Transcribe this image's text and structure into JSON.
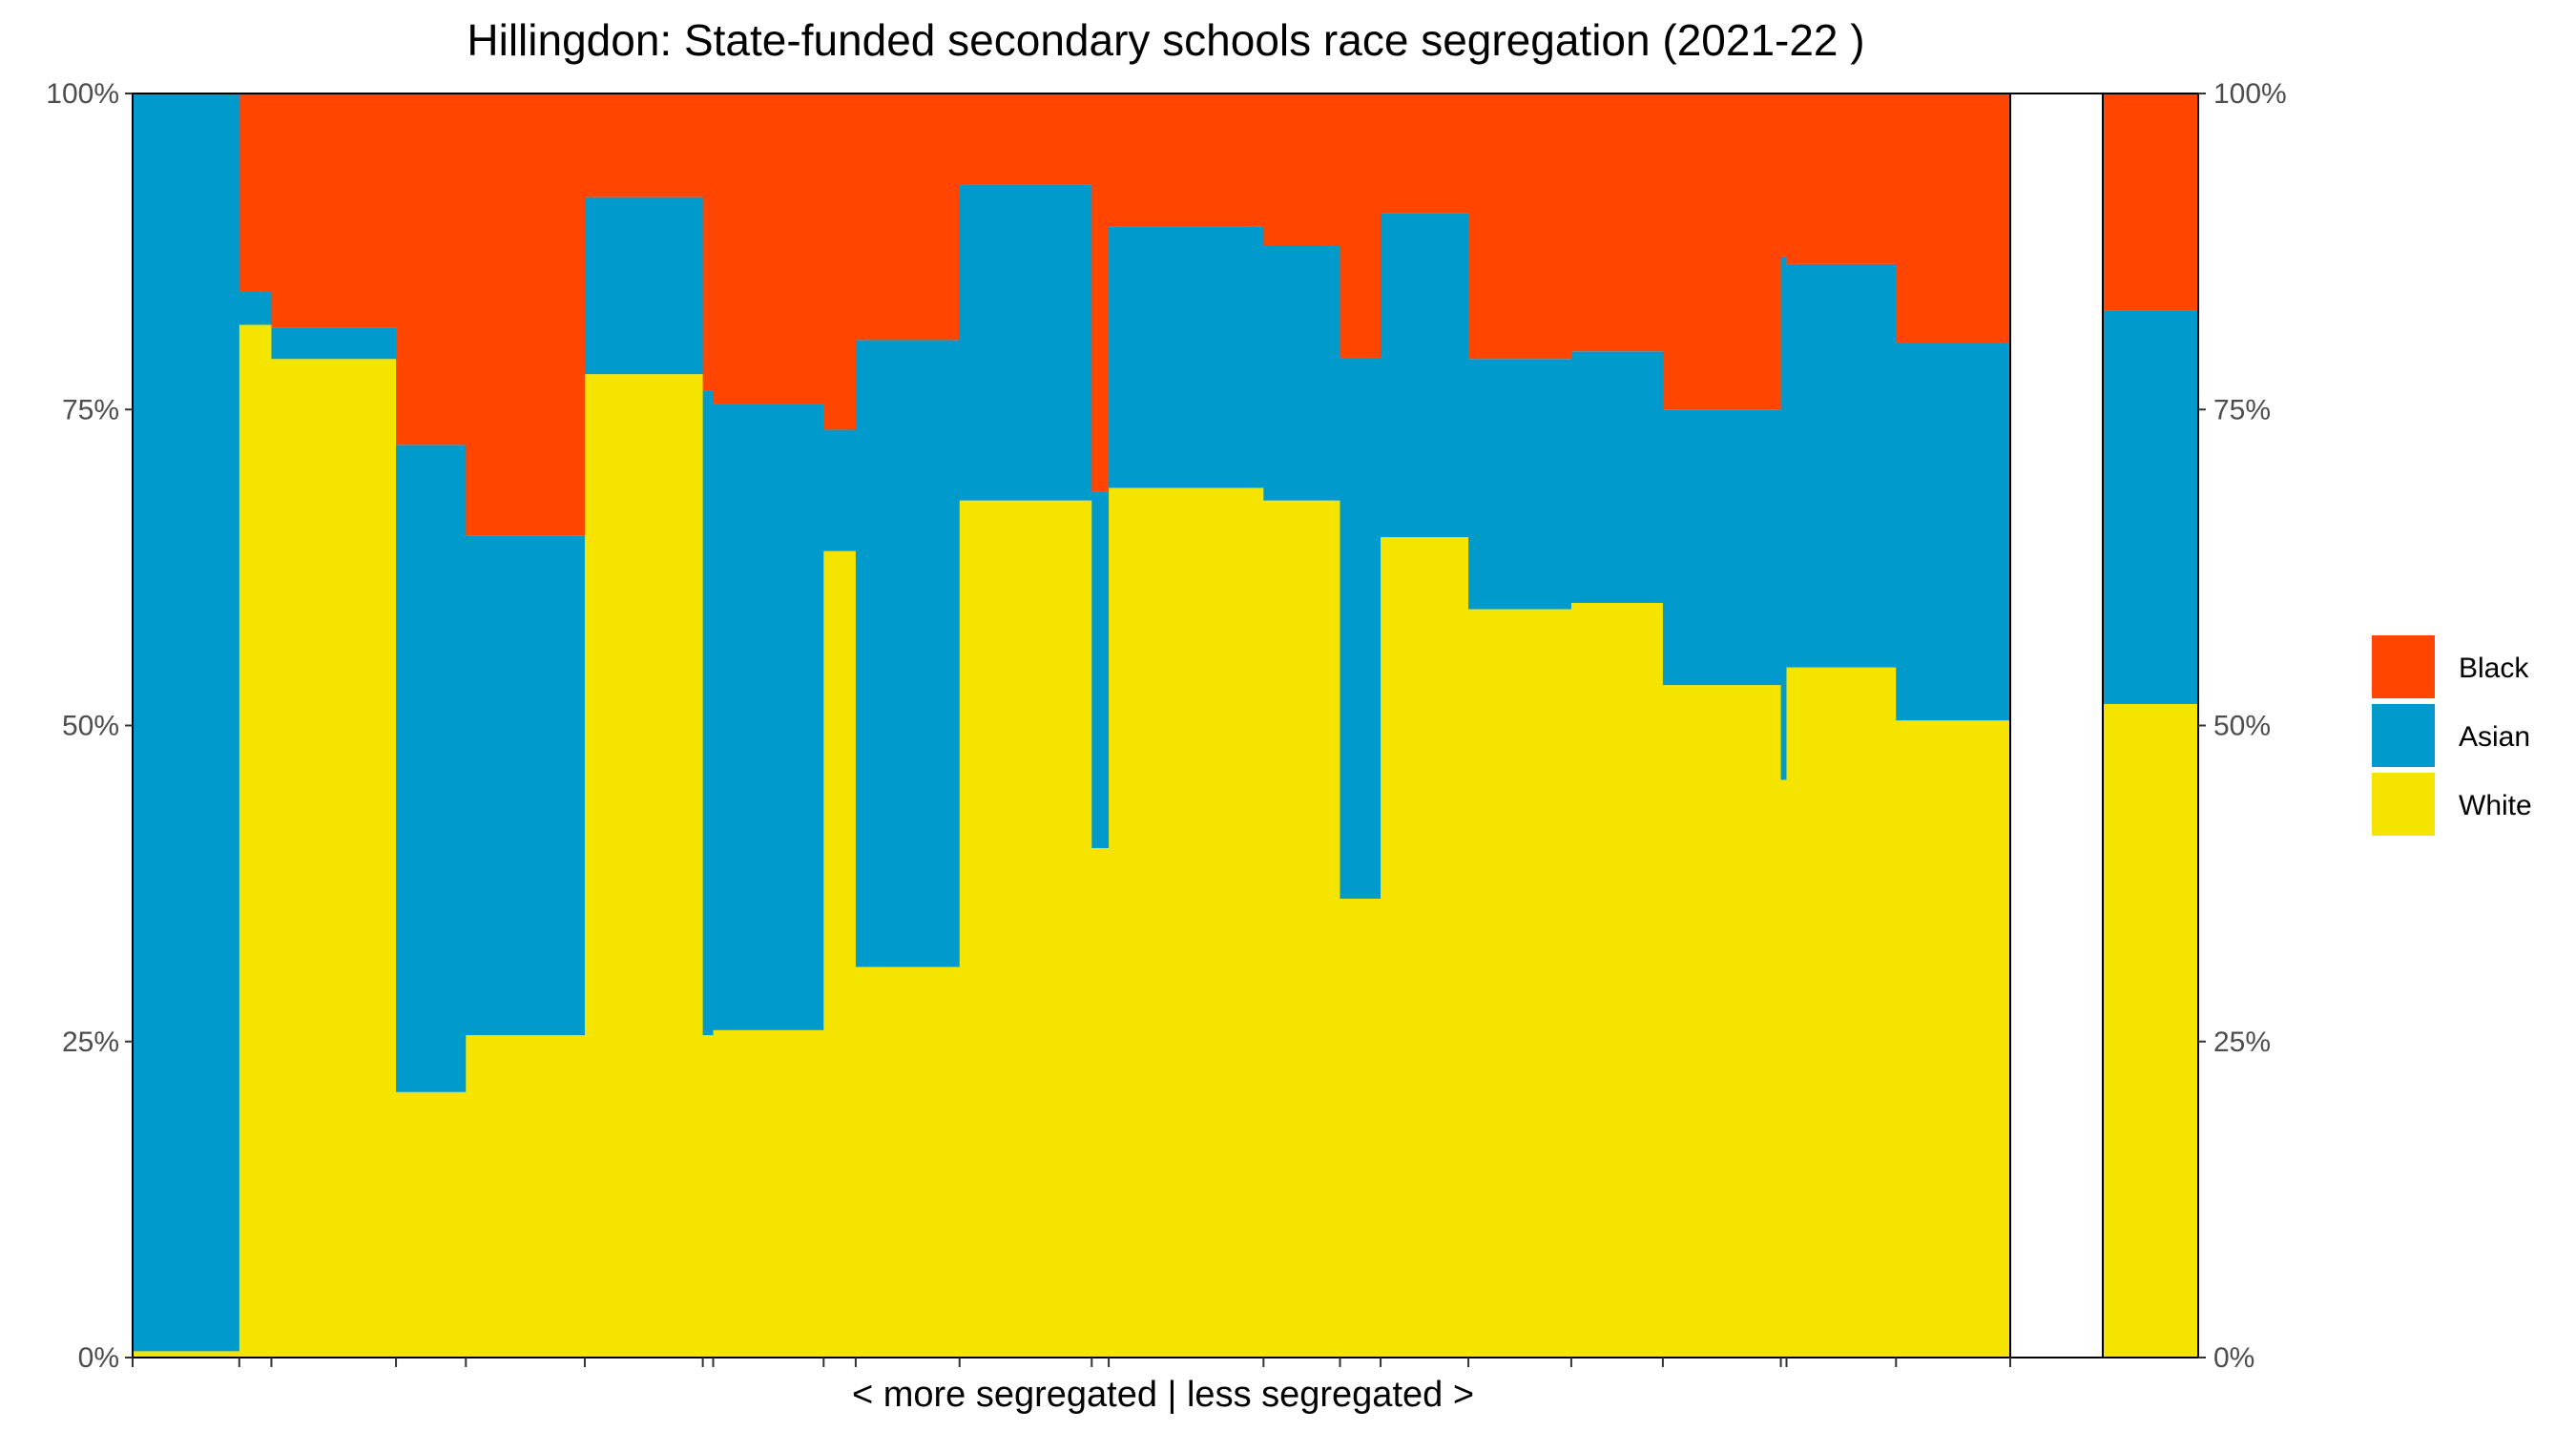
{
  "chart_data": {
    "type": "bar",
    "subtype": "stacked-100-percent-variable-width",
    "title": "Hillingdon: State-funded secondary schools race segregation (2021-22 )",
    "xlabel": "< more segregated | less segregated >",
    "ylabel": "",
    "ylim": [
      0,
      100
    ],
    "y_ticks": [
      "0%",
      "25%",
      "50%",
      "75%",
      "100%"
    ],
    "y_axis_both_sides": true,
    "grid": false,
    "legend_position": "right",
    "colors": {
      "Black": "#ff4500",
      "Asian": "#009acd",
      "White": "#f5e400"
    },
    "series_order": [
      "White",
      "Asian",
      "Black"
    ],
    "legend": [
      {
        "name": "Black",
        "color": "#ff4500"
      },
      {
        "name": "Asian",
        "color": "#009acd"
      },
      {
        "name": "White",
        "color": "#f5e400"
      }
    ],
    "schools": [
      {
        "width": 11.3,
        "white": 0.5,
        "asian": 99.5,
        "black": 0
      },
      {
        "width": 3.4,
        "white": 81.7,
        "asian": 2.6,
        "black": 15.7
      },
      {
        "width": 13.2,
        "white": 79.0,
        "asian": 2.5,
        "black": 18.5
      },
      {
        "width": 7.4,
        "white": 21.0,
        "asian": 51.2,
        "black": 27.8
      },
      {
        "width": 12.6,
        "white": 25.5,
        "asian": 39.5,
        "black": 35.0
      },
      {
        "width": 12.5,
        "white": 77.8,
        "asian": 14.0,
        "black": 8.2
      },
      {
        "width": 1.1,
        "white": 25.5,
        "asian": 51.0,
        "black": 23.5
      },
      {
        "width": 11.7,
        "white": 25.9,
        "asian": 49.5,
        "black": 24.6
      },
      {
        "width": 3.4,
        "white": 63.8,
        "asian": 9.6,
        "black": 26.6
      },
      {
        "width": 11.0,
        "white": 30.9,
        "asian": 49.6,
        "black": 19.5
      },
      {
        "width": 14.0,
        "white": 67.8,
        "asian": 25.0,
        "black": 7.2
      },
      {
        "width": 1.8,
        "white": 40.3,
        "asian": 28.2,
        "black": 31.5
      },
      {
        "width": 16.4,
        "white": 68.8,
        "asian": 20.7,
        "black": 10.5
      },
      {
        "width": 8.1,
        "white": 67.8,
        "asian": 20.2,
        "black": 12.0
      },
      {
        "width": 4.3,
        "white": 36.3,
        "asian": 42.8,
        "black": 20.9
      },
      {
        "width": 9.3,
        "white": 64.9,
        "asian": 25.6,
        "black": 9.5
      },
      {
        "width": 10.9,
        "white": 59.2,
        "asian": 19.8,
        "black": 21.0
      },
      {
        "width": 9.7,
        "white": 59.7,
        "asian": 19.9,
        "black": 20.4
      },
      {
        "width": 12.5,
        "white": 53.2,
        "asian": 21.8,
        "black": 25.0
      },
      {
        "width": 0.6,
        "white": 45.7,
        "asian": 41.4,
        "black": 12.9
      },
      {
        "width": 11.6,
        "white": 54.6,
        "asian": 31.9,
        "black": 13.5
      },
      {
        "width": 12.1,
        "white": 50.4,
        "asian": 29.9,
        "black": 19.7
      }
    ],
    "overall": {
      "white": 51.7,
      "asian": 31.1,
      "black": 17.2
    }
  }
}
